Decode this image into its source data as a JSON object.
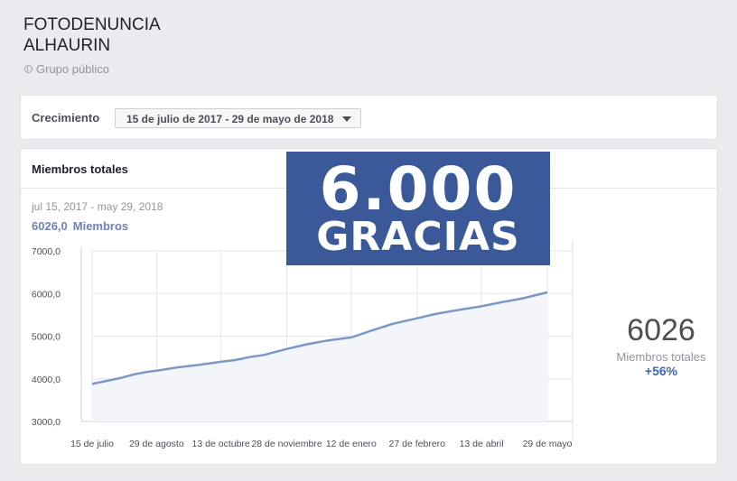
{
  "group": {
    "name_line1": "FOTODENUNCIA",
    "name_line2": "ALHAURIN",
    "type": "Grupo público"
  },
  "growth": {
    "label": "Crecimiento",
    "date_range": "15 de julio de 2017 - 29 de mayo de 2018"
  },
  "members": {
    "title": "Miembros totales",
    "range": "jul 15, 2017 - may 29, 2018",
    "value": "6026,0",
    "value_label": "Miembros"
  },
  "overlay": {
    "line1": "6.000",
    "line2": "GRACIAS"
  },
  "summary": {
    "value": "6026",
    "label": "Miembros totales",
    "change": "+56%"
  },
  "colors": {
    "line": "#7b97c7",
    "fill": "#f3f5fa",
    "banner": "#3b5998",
    "accent": "#4267b2"
  },
  "chart_data": {
    "type": "area",
    "y_tick_labels": [
      "3000,0",
      "4000,0",
      "5000,0",
      "6000,0",
      "7000,0"
    ],
    "ylim": [
      3000,
      7000
    ],
    "x_tick_labels": [
      "15 de julio",
      "29 de agosto",
      "13 de octubre",
      "28 de noviembre",
      "12 de enero",
      "27 de febrero",
      "13 de abril",
      "29 de mayo"
    ],
    "x_tick_days": [
      0,
      45,
      90,
      136,
      181,
      227,
      272,
      318
    ],
    "xlim": [
      0,
      318
    ],
    "series": [
      {
        "x": [
          0,
          10,
          20,
          30,
          40,
          45,
          60,
          75,
          90,
          100,
          110,
          120,
          136,
          150,
          165,
          181,
          195,
          210,
          227,
          240,
          255,
          272,
          285,
          300,
          318
        ],
        "values": [
          3880,
          3950,
          4020,
          4110,
          4170,
          4190,
          4270,
          4330,
          4400,
          4440,
          4510,
          4560,
          4700,
          4810,
          4900,
          4970,
          5130,
          5290,
          5420,
          5520,
          5610,
          5700,
          5790,
          5880,
          6026
        ]
      }
    ]
  }
}
